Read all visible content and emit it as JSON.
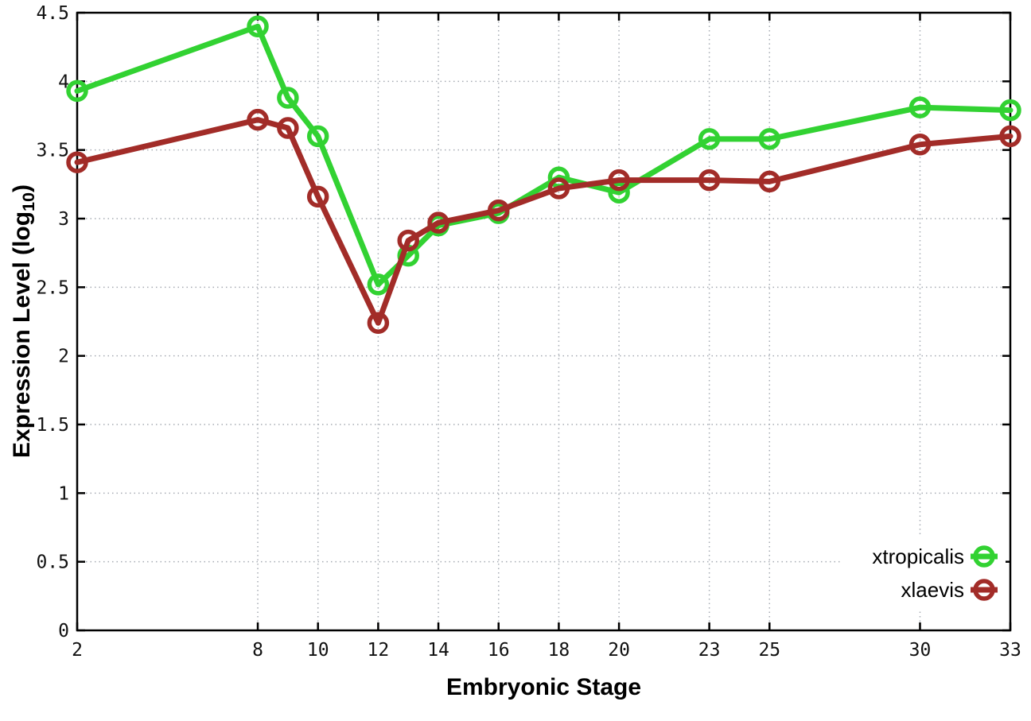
{
  "chart_data": {
    "type": "line",
    "title": "",
    "xlabel": "Embryonic Stage",
    "ylabel": {
      "prefix": "Expression Level (log",
      "sub": "10",
      "suffix": ")"
    },
    "x": [
      2,
      8,
      9,
      10,
      12,
      13,
      14,
      16,
      18,
      20,
      23,
      25,
      30,
      33
    ],
    "series": [
      {
        "name": "xtropicalis",
        "color": "#32d232",
        "values": [
          3.93,
          4.4,
          3.88,
          3.6,
          2.52,
          2.73,
          2.95,
          3.04,
          3.3,
          3.19,
          3.58,
          3.58,
          3.81,
          3.79
        ]
      },
      {
        "name": "xlaevis",
        "color": "#a22c28",
        "values": [
          3.41,
          3.72,
          3.66,
          3.16,
          2.24,
          2.84,
          2.97,
          3.06,
          3.22,
          3.28,
          3.28,
          3.27,
          3.54,
          3.6
        ]
      }
    ],
    "x_ticks": [
      2,
      8,
      10,
      12,
      14,
      16,
      18,
      20,
      23,
      25,
      30,
      33
    ],
    "y_ticks": [
      0,
      0.5,
      1,
      1.5,
      2,
      2.5,
      3,
      3.5,
      4,
      4.5
    ],
    "y_tick_labels": [
      "0",
      "0.5",
      "1",
      "1.5",
      "2",
      "2.5",
      "3",
      "3.5",
      "4",
      "4.5"
    ],
    "xlim": [
      2,
      33
    ],
    "ylim": [
      0,
      4.5
    ],
    "grid": true,
    "legend_position": "bottom-right",
    "legend": [
      "xtropicalis",
      "xlaevis"
    ],
    "marker": "open-circle"
  },
  "colors": {
    "background": "#ffffff",
    "axis": "#000000",
    "grid": "#a6abb3",
    "text": "#000000",
    "xtropicalis": "#32d232",
    "xlaevis": "#a22c28"
  }
}
